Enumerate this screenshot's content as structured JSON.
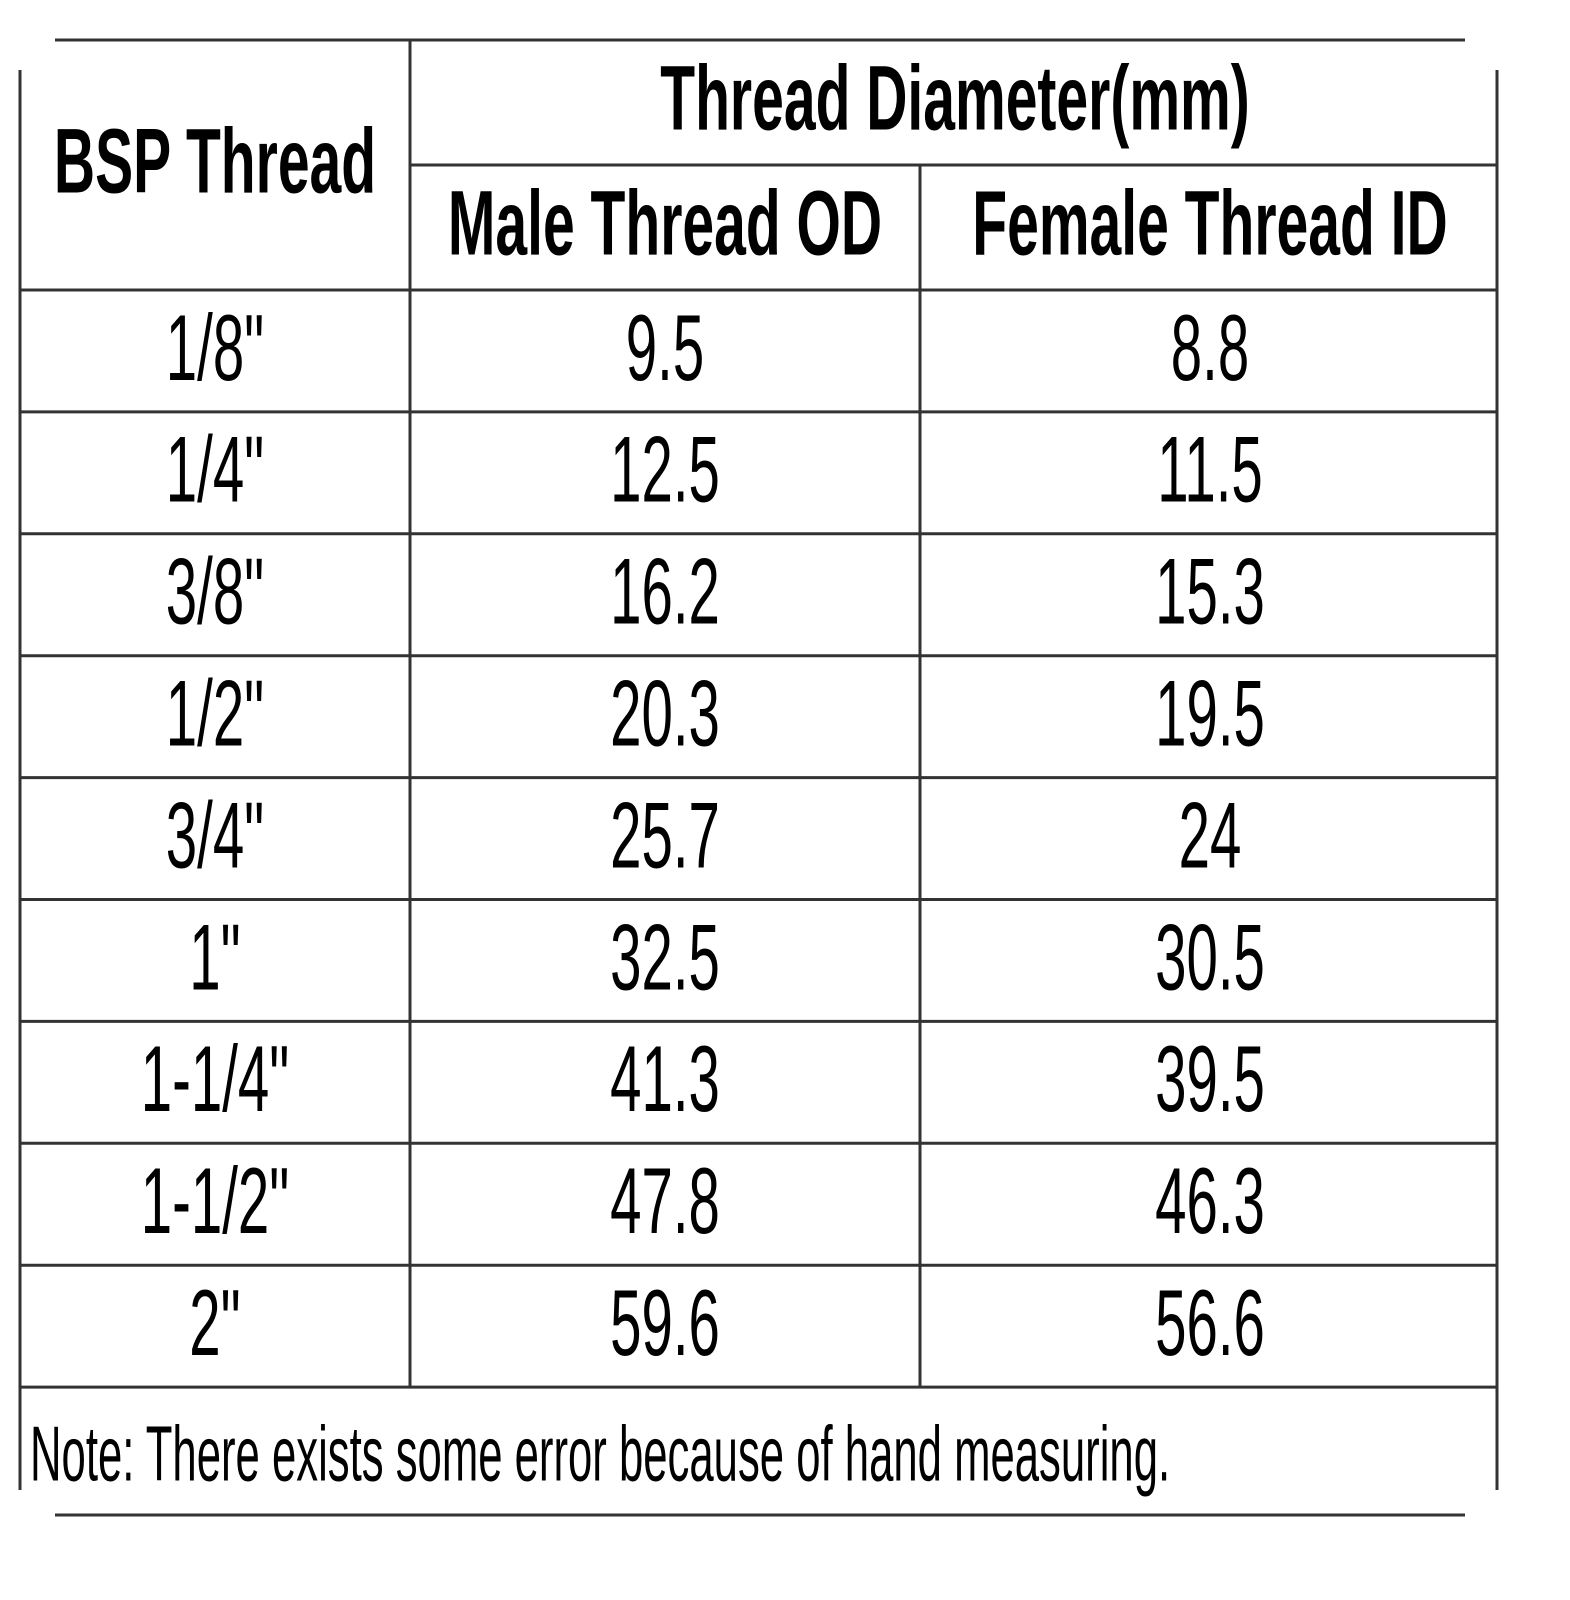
{
  "header": {
    "title": "BSP Thread",
    "group": "Thread Diameter(mm)",
    "columns": [
      "Male Thread OD",
      "Female Thread ID"
    ]
  },
  "table": {
    "rows": [
      [
        "1/8\"",
        "9.5",
        "8.8"
      ],
      [
        "1/4\"",
        "12.5",
        "11.5"
      ],
      [
        "3/8\"",
        "16.2",
        "15.3"
      ],
      [
        "1/2\"",
        "20.3",
        "19.5"
      ],
      [
        "3/4\"",
        "25.7",
        "24"
      ],
      [
        "1\"",
        "32.5",
        "30.5"
      ],
      [
        "1-1/4\"",
        "41.3",
        "39.5"
      ],
      [
        "1-1/2\"",
        "47.8",
        "46.3"
      ],
      [
        "2\"",
        "59.6",
        "56.6"
      ]
    ]
  },
  "note": "Note: There exists some error because of hand measuring."
}
